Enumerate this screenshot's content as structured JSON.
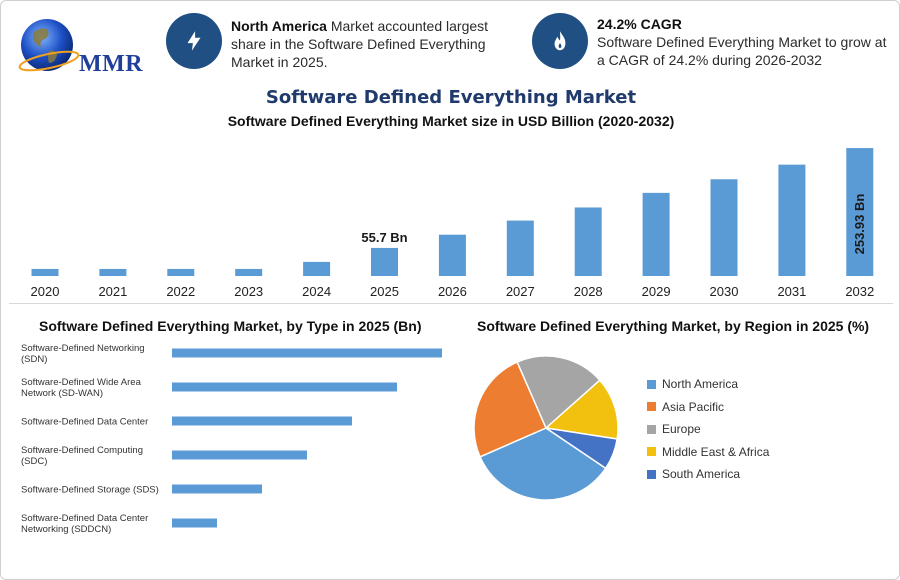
{
  "header": {
    "logo_text": "MMR",
    "info1": {
      "bold": "North America",
      "text": " Market accounted largest share in the Software Defined Everything Market in 2025."
    },
    "info2": {
      "bold": "24.2% CAGR",
      "text": "Software Defined Everything Market to grow at a CAGR of 24.2% during 2026-2032"
    }
  },
  "titles": {
    "main": "Software Defined Everything Market",
    "sub": "Software Defined Everything Market size in USD Billion (2020-2032)"
  },
  "colors": {
    "bar": "#5b9bd5",
    "accent": "#1f4f83"
  },
  "chart_data": [
    {
      "type": "bar",
      "title": "Software Defined Everything Market size in USD Billion (2020-2032)",
      "categories": [
        "2020",
        "2021",
        "2022",
        "2023",
        "2024",
        "2025",
        "2026",
        "2027",
        "2028",
        "2029",
        "2030",
        "2031",
        "2032"
      ],
      "values": [
        14,
        14,
        14,
        14,
        28,
        55.7,
        82,
        110,
        136,
        165,
        192,
        221,
        253.93
      ],
      "data_labels": {
        "2025": "55.7 Bn",
        "2032": "253.93 Bn"
      },
      "ylim": [
        0,
        260
      ]
    },
    {
      "type": "bar",
      "orientation": "horizontal",
      "title": "Software Defined Everything Market, by Type in 2025 (Bn)",
      "categories": [
        [
          "Software-Defined Networking",
          "(SDN)"
        ],
        [
          "Software-Defined Wide Area",
          "Network (SD-WAN)"
        ],
        [
          "Software-Defined Data Center"
        ],
        [
          "Software-Defined Computing",
          "(SDC)"
        ],
        [
          "Software-Defined Storage (SDS)"
        ],
        [
          "Software-Defined Data Center",
          "Networking (SDDCN)"
        ]
      ],
      "values": [
        6,
        5,
        4,
        3,
        2,
        1
      ],
      "xlim": [
        0,
        6
      ]
    },
    {
      "type": "pie",
      "title": "Software Defined Everything Market, by Region in 2025 (%)",
      "labels": [
        "North America",
        "Asia Pacific",
        "Europe",
        "Middle East & Africa",
        "South America"
      ],
      "values": [
        34,
        25,
        20,
        14,
        7
      ],
      "colors": [
        "#5b9bd5",
        "#ed7d31",
        "#a5a5a5",
        "#f2c00e",
        "#4472c4"
      ]
    }
  ]
}
